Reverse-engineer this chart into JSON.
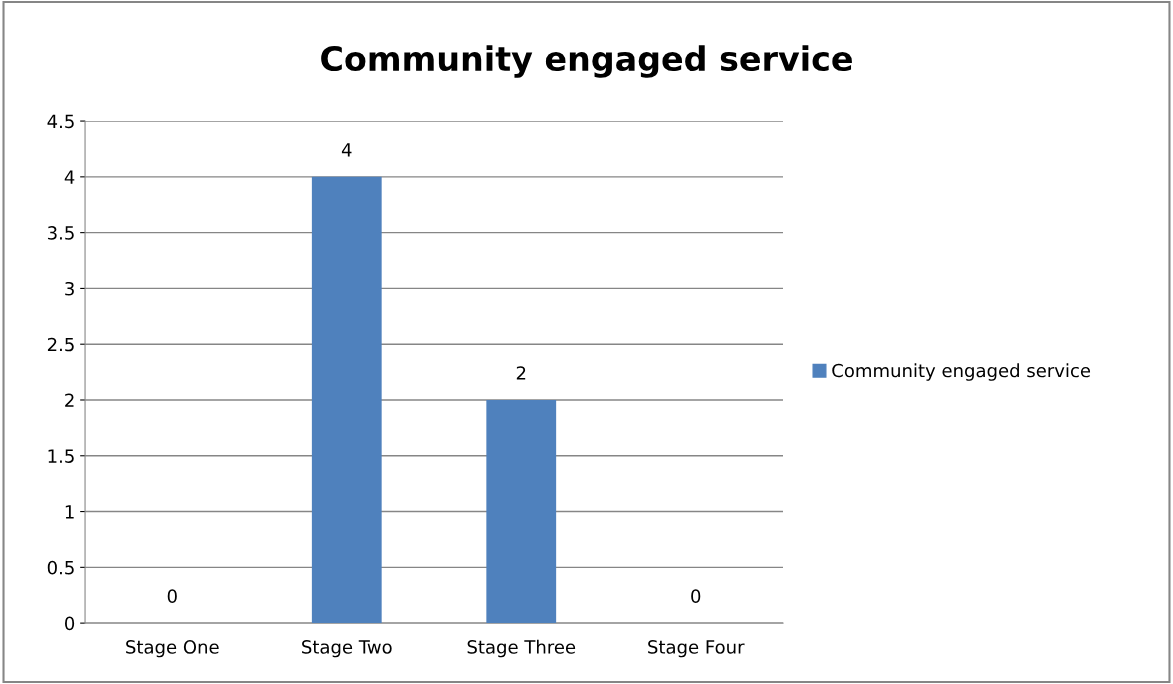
{
  "chart_data": {
    "type": "bar",
    "title": "Community engaged service",
    "categories": [
      "Stage One",
      "Stage Two",
      "Stage Three",
      "Stage Four"
    ],
    "series": [
      {
        "name": "Community engaged service",
        "color": "#4f81bd",
        "values": [
          0,
          4,
          2,
          0
        ]
      }
    ],
    "ylim": [
      0,
      4.5
    ],
    "yticks": [
      0,
      0.5,
      1,
      1.5,
      2,
      2.5,
      3,
      3.5,
      4,
      4.5
    ],
    "grid": "y",
    "legend": "right",
    "data_labels": true
  }
}
